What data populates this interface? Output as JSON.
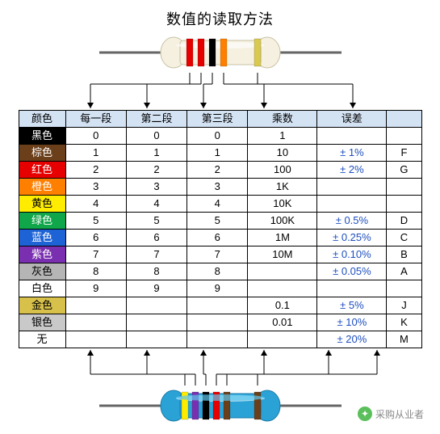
{
  "title": "数值的读取方法",
  "headers": [
    "颜色",
    "每一段",
    "第二段",
    "第三段",
    "乘数",
    "误差",
    ""
  ],
  "header_bg": "#d4e3f4",
  "rows": [
    {
      "label": "黑色",
      "bg": "#000000",
      "fg": "#ffffff",
      "d1": "0",
      "d2": "0",
      "d3": "0",
      "mult": "1",
      "tol": "",
      "code": ""
    },
    {
      "label": "棕色",
      "bg": "#6b3f1a",
      "fg": "#ffffff",
      "d1": "1",
      "d2": "1",
      "d3": "1",
      "mult": "10",
      "tol": "± 1%",
      "code": "F"
    },
    {
      "label": "红色",
      "bg": "#e60000",
      "fg": "#ffffff",
      "d1": "2",
      "d2": "2",
      "d3": "2",
      "mult": "100",
      "tol": "± 2%",
      "code": "G"
    },
    {
      "label": "橙色",
      "bg": "#ff7f00",
      "fg": "#ffffff",
      "d1": "3",
      "d2": "3",
      "d3": "3",
      "mult": "1K",
      "tol": "",
      "code": ""
    },
    {
      "label": "黄色",
      "bg": "#ffec00",
      "fg": "#000000",
      "d1": "4",
      "d2": "4",
      "d3": "4",
      "mult": "10K",
      "tol": "",
      "code": ""
    },
    {
      "label": "绿色",
      "bg": "#10a64a",
      "fg": "#ffffff",
      "d1": "5",
      "d2": "5",
      "d3": "5",
      "mult": "100K",
      "tol": "± 0.5%",
      "code": "D"
    },
    {
      "label": "蓝色",
      "bg": "#1e63d6",
      "fg": "#ffffff",
      "d1": "6",
      "d2": "6",
      "d3": "6",
      "mult": "1M",
      "tol": "± 0.25%",
      "code": "C"
    },
    {
      "label": "紫色",
      "bg": "#7a2fb0",
      "fg": "#ffffff",
      "d1": "7",
      "d2": "7",
      "d3": "7",
      "mult": "10M",
      "tol": "± 0.10%",
      "code": "B"
    },
    {
      "label": "灰色",
      "bg": "#b5b5b5",
      "fg": "#000000",
      "d1": "8",
      "d2": "8",
      "d3": "8",
      "mult": "",
      "tol": "± 0.05%",
      "code": "A"
    },
    {
      "label": "白色",
      "bg": "#ffffff",
      "fg": "#000000",
      "d1": "9",
      "d2": "9",
      "d3": "9",
      "mult": "",
      "tol": "",
      "code": ""
    },
    {
      "label": "金色",
      "bg": "#d7c14a",
      "fg": "#000000",
      "d1": "",
      "d2": "",
      "d3": "",
      "mult": "0.1",
      "tol": "± 5%",
      "code": "J"
    },
    {
      "label": "银色",
      "bg": "#c9c9c9",
      "fg": "#000000",
      "d1": "",
      "d2": "",
      "d3": "",
      "mult": "0.01",
      "tol": "± 10%",
      "code": "K"
    },
    {
      "label": "无",
      "bg": "#ffffff",
      "fg": "#000000",
      "d1": "",
      "d2": "",
      "d3": "",
      "mult": "",
      "tol": "± 20%",
      "code": "M"
    }
  ],
  "tol_text_color": "#1e4fbf",
  "resistor_top": {
    "body_light": "#f5f0e0",
    "body_shadow": "#c9c2a5",
    "lead_color": "#666666",
    "bands": [
      {
        "color": "#e60000"
      },
      {
        "color": "#e60000"
      },
      {
        "color": "#000000"
      },
      {
        "color": "#ff7f00"
      },
      {
        "color": "#d9c94f"
      }
    ]
  },
  "resistor_bottom": {
    "body_color": "#2aa2d6",
    "body_highlight": "#5cc8ef",
    "lead_color": "#666666",
    "bands": [
      {
        "color": "#ffec00"
      },
      {
        "color": "#7a2fb0"
      },
      {
        "color": "#000000"
      },
      {
        "color": "#e60000"
      },
      {
        "color": "#6b3f1a"
      },
      {
        "color": "#6b3f1a"
      }
    ]
  },
  "watermark": "采购从业者"
}
